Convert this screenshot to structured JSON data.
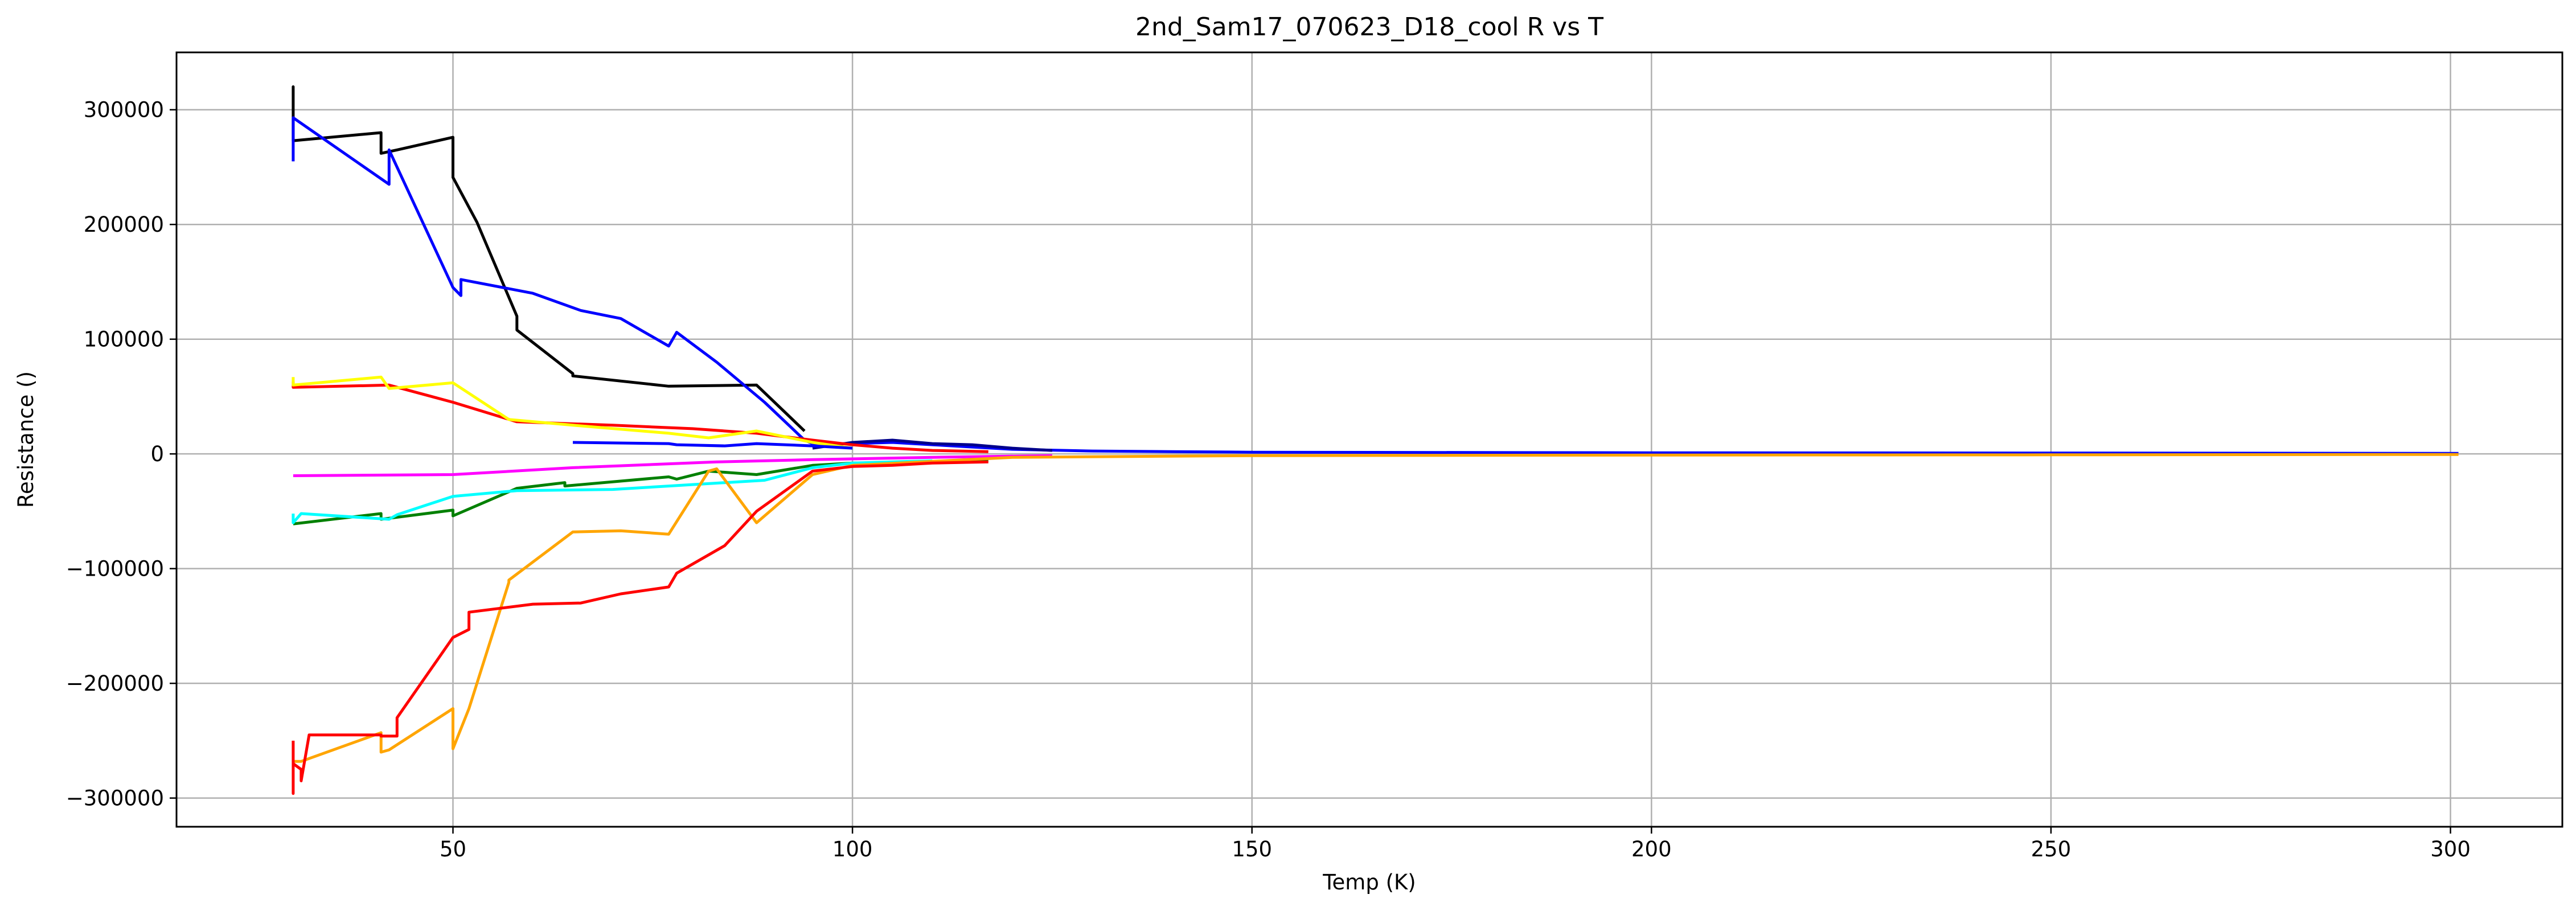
{
  "chart_data": {
    "type": "line",
    "title": "2nd_Sam17_070623_D18_cool R vs T",
    "xlabel": "Temp (K)",
    "ylabel": "Resistance ()",
    "xlim": [
      15.4,
      314
    ],
    "ylim": [
      -325000,
      350000
    ],
    "xticks": [
      50,
      100,
      150,
      200,
      250,
      300
    ],
    "yticks": [
      -300000,
      -200000,
      -100000,
      0,
      100000,
      200000,
      300000
    ],
    "grid": true,
    "legend": "none",
    "series": [
      {
        "color": "#000000",
        "x": [
          30,
          30,
          30,
          41,
          41,
          43,
          50,
          50,
          53,
          58,
          58,
          65,
          65,
          77,
          88,
          94
        ],
        "y": [
          280000,
          320000,
          273000,
          280000,
          262000,
          265000,
          276000,
          241000,
          202000,
          120000,
          108000,
          70000,
          68000,
          59000,
          60000,
          20000
        ]
      },
      {
        "color": "#0000ff",
        "x": [
          30,
          30,
          30,
          42,
          42,
          50,
          51,
          51,
          60,
          66,
          71,
          77,
          78,
          83,
          89,
          94,
          95,
          100,
          105,
          110,
          115,
          120,
          130,
          140,
          150,
          200,
          250,
          301
        ],
        "y": [
          255000,
          293000,
          293000,
          235000,
          265000,
          145000,
          138000,
          152000,
          140000,
          125000,
          118000,
          94000,
          106000,
          80000,
          45000,
          12000,
          9000,
          9000,
          10000,
          8000,
          6000,
          4000,
          2500,
          2000,
          1500,
          1000,
          800,
          500
        ]
      },
      {
        "color": "#00008b",
        "x": [
          95,
          100,
          105,
          110,
          115,
          120,
          125
        ],
        "y": [
          5000,
          10000,
          12000,
          9000,
          8000,
          5000,
          3000
        ]
      },
      {
        "color": "#ff0000",
        "x": [
          30,
          30,
          42,
          50,
          58,
          70,
          80,
          88,
          95,
          100,
          105,
          110,
          117
        ],
        "y": [
          63000,
          58000,
          60000,
          45000,
          28000,
          25000,
          22000,
          18000,
          12000,
          8000,
          5000,
          3000,
          2000
        ]
      },
      {
        "color": "#ffff00",
        "x": [
          30,
          30,
          41,
          42,
          50,
          57,
          65,
          77,
          82,
          88,
          95,
          100
        ],
        "y": [
          67000,
          60000,
          67000,
          57000,
          62000,
          30000,
          25000,
          18000,
          14000,
          20000,
          10000,
          5000
        ]
      },
      {
        "color": "#0000ff",
        "x": [
          65,
          77,
          78,
          84,
          88,
          95,
          100
        ],
        "y": [
          10000,
          9000,
          8000,
          7000,
          9000,
          7000,
          5000
        ]
      },
      {
        "color": "#ff00ff",
        "x": [
          30,
          50,
          65,
          83,
          95,
          110,
          125
        ],
        "y": [
          -19000,
          -18000,
          -12000,
          -7000,
          -5000,
          -3000,
          -1500
        ]
      },
      {
        "color": "#008000",
        "x": [
          30,
          41,
          41,
          50,
          50,
          58,
          64,
          64,
          77,
          78,
          82,
          88,
          95,
          100,
          117
        ],
        "y": [
          -61000,
          -52000,
          -57000,
          -49000,
          -54000,
          -30000,
          -25000,
          -28000,
          -20000,
          -22000,
          -15000,
          -18000,
          -10000,
          -8000,
          -6000
        ]
      },
      {
        "color": "#00ffff",
        "x": [
          30,
          30,
          31,
          42,
          43,
          50,
          58,
          70,
          77,
          89,
          95,
          100,
          110
        ],
        "y": [
          -52000,
          -60000,
          -52000,
          -57000,
          -53000,
          -37000,
          -32000,
          -31000,
          -28000,
          -23000,
          -12000,
          -8000,
          -6000
        ]
      },
      {
        "color": "#ffa500",
        "x": [
          30,
          31,
          41,
          41,
          42,
          50,
          50,
          52,
          57,
          57,
          65,
          71,
          77,
          82,
          83,
          88,
          95,
          100,
          120,
          150,
          200,
          250,
          301
        ],
        "y": [
          -268000,
          -268000,
          -243000,
          -260000,
          -258000,
          -222000,
          -257000,
          -222000,
          -112000,
          -110000,
          -68000,
          -67000,
          -70000,
          -15000,
          -13000,
          -60000,
          -18000,
          -10000,
          -3000,
          -1500,
          -1000,
          -800,
          -500
        ]
      },
      {
        "color": "#ff0000",
        "x": [
          30,
          30,
          30,
          31,
          31,
          32,
          41,
          41,
          43,
          43,
          50,
          52,
          52,
          60,
          66,
          71,
          77,
          78,
          84,
          88,
          95,
          100,
          105,
          110,
          117
        ],
        "y": [
          -250000,
          -296000,
          -270000,
          -275000,
          -285000,
          -245000,
          -245000,
          -246000,
          -246000,
          -230000,
          -160000,
          -153000,
          -138000,
          -131000,
          -130000,
          -122000,
          -116000,
          -104000,
          -80000,
          -50000,
          -15000,
          -11000,
          -10000,
          -8000,
          -7000
        ]
      }
    ]
  }
}
